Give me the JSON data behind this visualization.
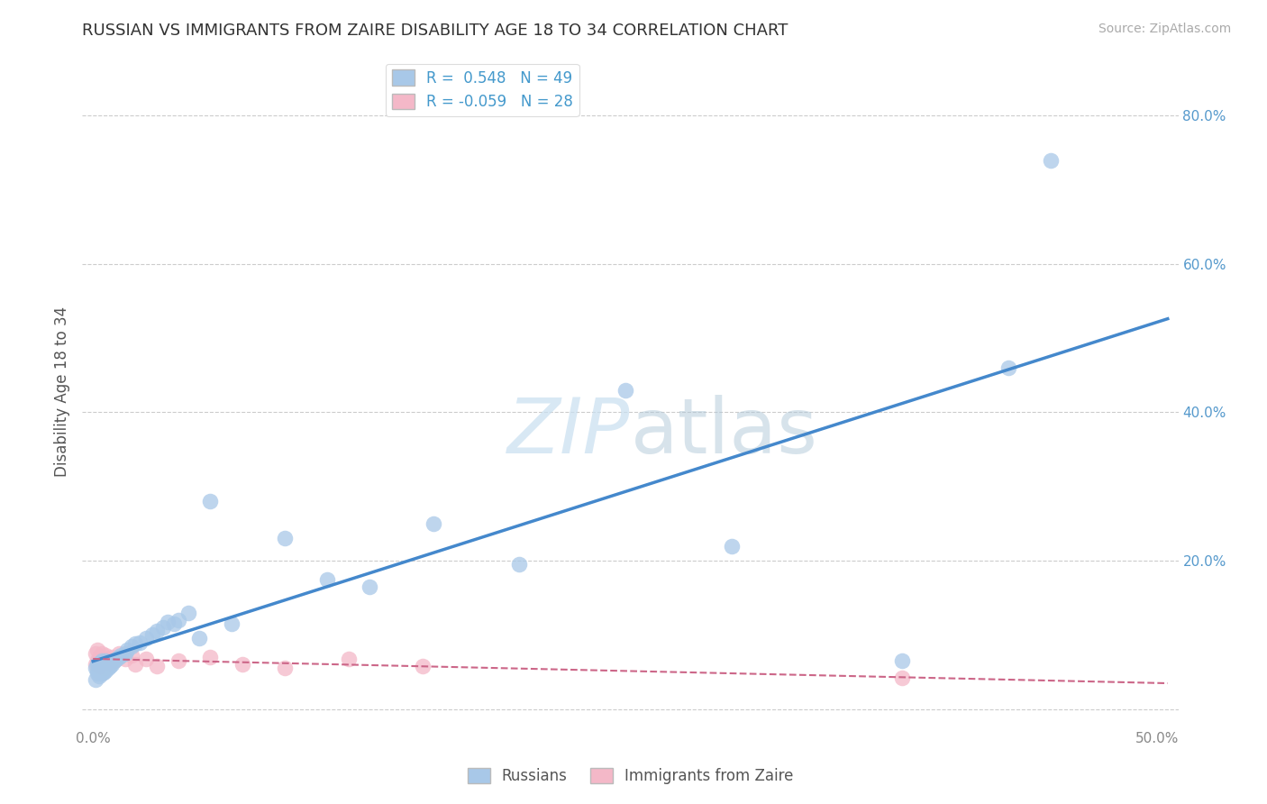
{
  "title": "RUSSIAN VS IMMIGRANTS FROM ZAIRE DISABILITY AGE 18 TO 34 CORRELATION CHART",
  "source": "Source: ZipAtlas.com",
  "ylabel": "Disability Age 18 to 34",
  "xlim": [
    -0.005,
    0.51
  ],
  "ylim": [
    -0.025,
    0.88
  ],
  "xticks": [
    0.0,
    0.1,
    0.2,
    0.3,
    0.4,
    0.5
  ],
  "xticklabels": [
    "0.0%",
    "",
    "",
    "",
    "",
    "50.0%"
  ],
  "yticks": [
    0.0,
    0.2,
    0.4,
    0.6,
    0.8
  ],
  "right_yticklabels": [
    "",
    "20.0%",
    "40.0%",
    "60.0%",
    "80.0%"
  ],
  "R_russian": 0.548,
  "N_russian": 49,
  "R_zaire": -0.059,
  "N_zaire": 28,
  "russian_color": "#a8c8e8",
  "zaire_color": "#f4b8c8",
  "russian_line_color": "#4488cc",
  "zaire_line_color": "#cc6688",
  "background_color": "#ffffff",
  "grid_color": "#cccccc",
  "russian_x": [
    0.001,
    0.001,
    0.002,
    0.002,
    0.002,
    0.003,
    0.003,
    0.003,
    0.004,
    0.004,
    0.004,
    0.005,
    0.005,
    0.006,
    0.006,
    0.007,
    0.007,
    0.008,
    0.009,
    0.01,
    0.011,
    0.012,
    0.013,
    0.015,
    0.016,
    0.018,
    0.02,
    0.022,
    0.025,
    0.028,
    0.03,
    0.033,
    0.035,
    0.038,
    0.04,
    0.045,
    0.05,
    0.055,
    0.065,
    0.09,
    0.11,
    0.13,
    0.16,
    0.2,
    0.25,
    0.3,
    0.38,
    0.43,
    0.45
  ],
  "russian_y": [
    0.04,
    0.055,
    0.048,
    0.052,
    0.06,
    0.044,
    0.055,
    0.062,
    0.048,
    0.055,
    0.065,
    0.05,
    0.06,
    0.052,
    0.065,
    0.055,
    0.06,
    0.058,
    0.06,
    0.065,
    0.068,
    0.07,
    0.072,
    0.075,
    0.08,
    0.085,
    0.088,
    0.09,
    0.095,
    0.1,
    0.105,
    0.11,
    0.118,
    0.115,
    0.12,
    0.13,
    0.095,
    0.28,
    0.115,
    0.23,
    0.175,
    0.165,
    0.25,
    0.195,
    0.43,
    0.22,
    0.065,
    0.46,
    0.74
  ],
  "zaire_x": [
    0.001,
    0.001,
    0.002,
    0.002,
    0.003,
    0.003,
    0.004,
    0.004,
    0.005,
    0.005,
    0.006,
    0.007,
    0.008,
    0.009,
    0.01,
    0.012,
    0.015,
    0.018,
    0.02,
    0.025,
    0.03,
    0.04,
    0.055,
    0.07,
    0.09,
    0.12,
    0.155,
    0.38
  ],
  "zaire_y": [
    0.06,
    0.075,
    0.065,
    0.08,
    0.058,
    0.07,
    0.062,
    0.075,
    0.055,
    0.068,
    0.072,
    0.068,
    0.062,
    0.07,
    0.065,
    0.075,
    0.068,
    0.072,
    0.06,
    0.068,
    0.058,
    0.065,
    0.07,
    0.06,
    0.055,
    0.068,
    0.058,
    0.042
  ]
}
